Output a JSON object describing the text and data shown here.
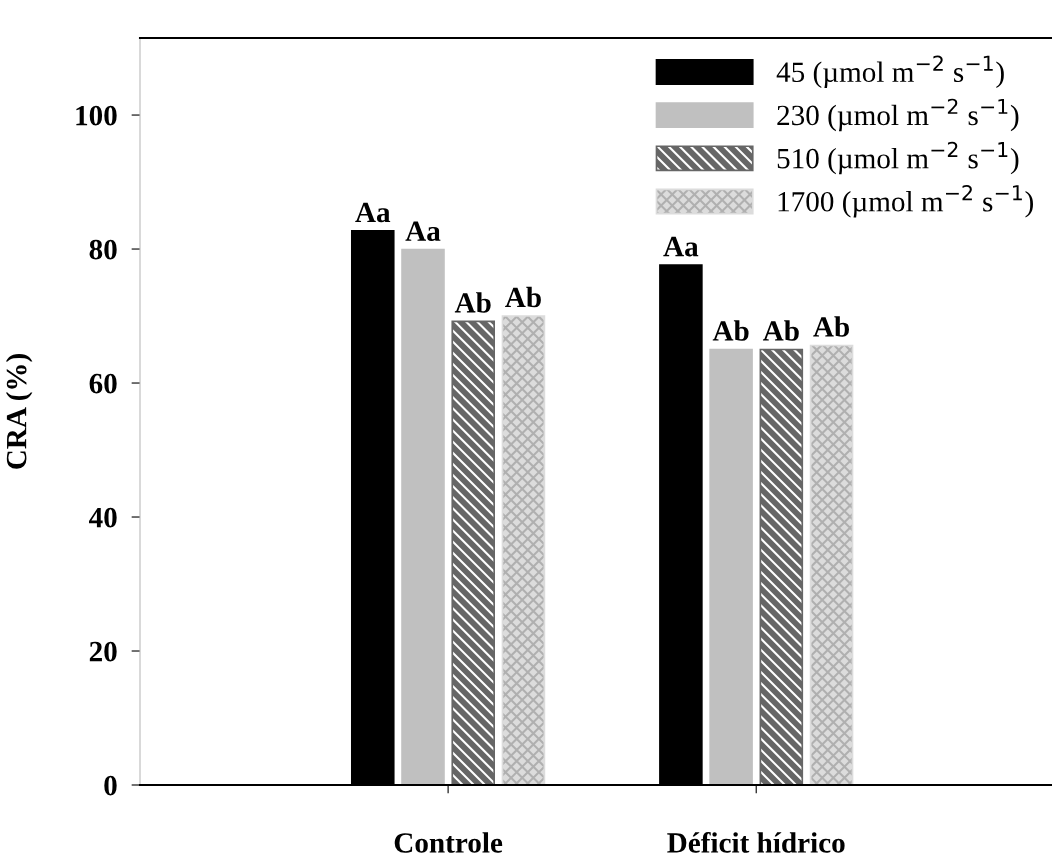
{
  "chart_data": {
    "type": "bar",
    "ylabel": "CRA (%)",
    "categories": [
      "Controle",
      "Déficit hídrico"
    ],
    "series": [
      {
        "name": "45 (µmol m$^{−2}$ s$^{−1}$)",
        "color": "#000000",
        "values": [
          82.7,
          77.6
        ],
        "value_labels": [
          "Aa",
          "Aa"
        ]
      },
      {
        "name": "230 (µmol m$^{−2}$ s$^{−1}$)",
        "color": "#c0c0c0",
        "values": [
          79.9,
          65.0
        ],
        "value_labels": [
          "Aa",
          "Ab"
        ]
      },
      {
        "name": "510 (µmol m$^{−2}$ s$^{−1}$)",
        "color": "#666666",
        "values": [
          69.2,
          65.0
        ],
        "value_labels": [
          "Ab",
          "Ab"
        ]
      },
      {
        "name": "1700 (µmol m$^{−2}$ s$^{−1}$)",
        "color": "#dcdcdc",
        "values": [
          70.0,
          65.6
        ],
        "value_labels": [
          "Ab",
          "Ab"
        ]
      }
    ],
    "ylim": [
      0,
      111.5
    ],
    "yticks": [
      0,
      20,
      40,
      60,
      80,
      100
    ],
    "grid": false,
    "legend": "top right"
  }
}
